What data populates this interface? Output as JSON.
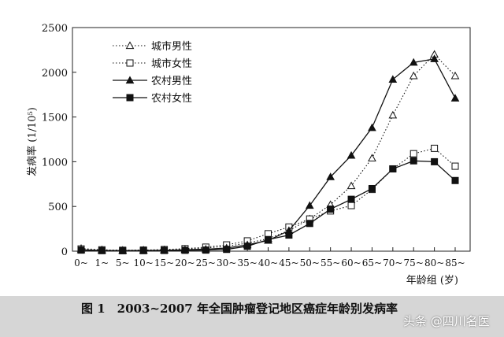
{
  "figure_caption": "图 1　2003~2007 年全国肿瘤登记地区癌症年龄别发病率",
  "watermark": "头条 @四川名医",
  "chart_data": {
    "type": "line",
    "ylabel": "发病率 (1/10⁵)",
    "xlabel": "年龄组 (岁)",
    "ylim": [
      0,
      2500
    ],
    "yticks": [
      0,
      500,
      1000,
      1500,
      2000,
      2500
    ],
    "categories": [
      "0~",
      "1~",
      "5~",
      "10~",
      "15~",
      "20~",
      "25~",
      "30~",
      "35~",
      "40~",
      "45~",
      "50~",
      "55~",
      "60~",
      "65~",
      "70~",
      "75~",
      "80~",
      "85~"
    ],
    "legend_position": "top-left",
    "grid": false,
    "series": [
      {
        "name": "城市男性",
        "style": "dotted",
        "marker": "open-triangle",
        "values": [
          30,
          15,
          10,
          12,
          15,
          22,
          35,
          55,
          90,
          140,
          230,
          360,
          520,
          730,
          1040,
          1520,
          1960,
          2200,
          1960
        ]
      },
      {
        "name": "城市女性",
        "style": "dotted",
        "marker": "open-square",
        "values": [
          25,
          15,
          10,
          12,
          18,
          28,
          45,
          70,
          115,
          195,
          270,
          360,
          450,
          510,
          690,
          920,
          1090,
          1150,
          950
        ]
      },
      {
        "name": "农村男性",
        "style": "solid",
        "marker": "filled-triangle",
        "values": [
          15,
          8,
          6,
          8,
          10,
          15,
          22,
          35,
          70,
          120,
          230,
          510,
          830,
          1070,
          1380,
          1920,
          2110,
          2150,
          1710
        ]
      },
      {
        "name": "农村女性",
        "style": "solid",
        "marker": "filled-square",
        "values": [
          12,
          6,
          5,
          6,
          8,
          10,
          12,
          20,
          55,
          130,
          180,
          310,
          470,
          580,
          700,
          920,
          1010,
          1000,
          790
        ]
      }
    ]
  }
}
